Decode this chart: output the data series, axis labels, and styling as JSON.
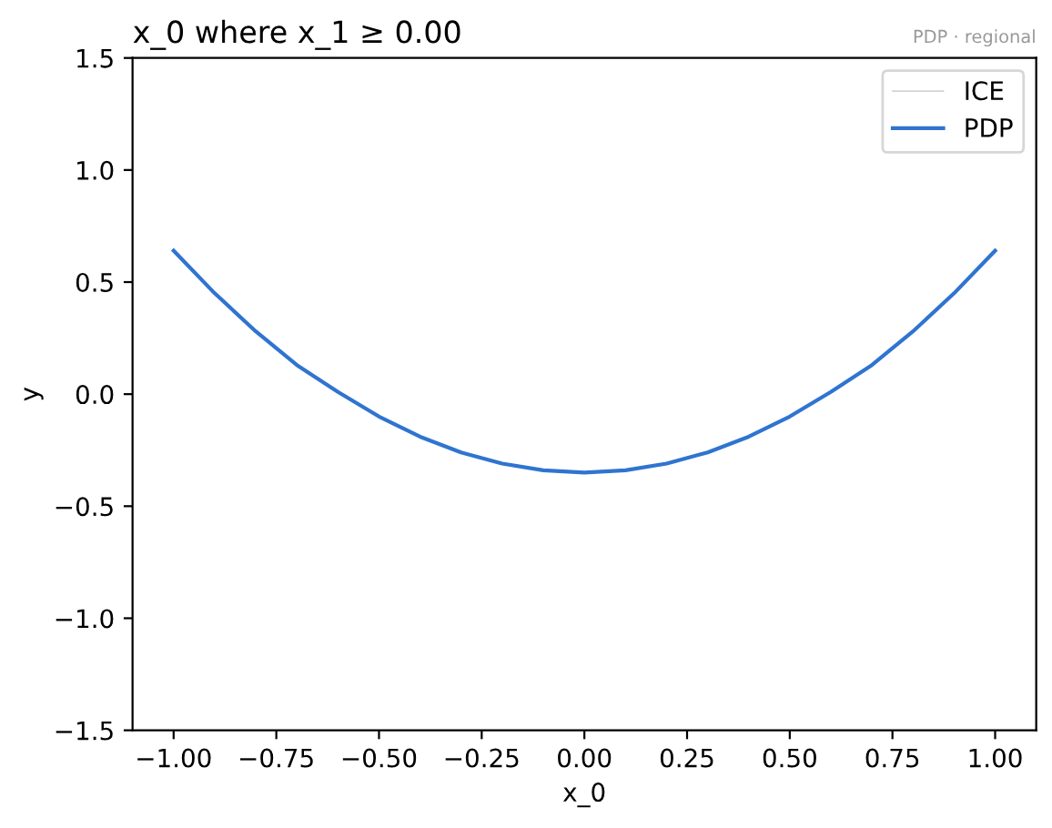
{
  "chart_data": {
    "type": "line",
    "title": "x_0 where x_1 ≥ 0.00",
    "xlabel": "x_0",
    "ylabel": "y",
    "annotations": [
      "PDP · regional"
    ],
    "x": [
      -1.0,
      -0.9,
      -0.8,
      -0.7,
      -0.6,
      -0.5,
      -0.4,
      -0.3,
      -0.2,
      -0.1,
      0.0,
      0.1,
      0.2,
      0.3,
      0.4,
      0.5,
      0.6,
      0.7,
      0.8,
      0.9,
      1.0
    ],
    "series": [
      {
        "name": "ICE",
        "color": "#d3d3d3",
        "values": [
          null,
          null,
          null,
          null,
          null,
          null,
          null,
          null,
          null,
          null,
          null,
          null,
          null,
          null,
          null,
          null,
          null,
          null,
          null,
          null,
          null
        ]
      },
      {
        "name": "PDP",
        "color": "#2f74d0",
        "values": [
          0.64,
          0.45,
          0.28,
          0.13,
          0.01,
          -0.1,
          -0.19,
          -0.26,
          -0.31,
          -0.34,
          -0.35,
          -0.34,
          -0.31,
          -0.26,
          -0.19,
          -0.1,
          0.01,
          0.13,
          0.28,
          0.45,
          0.64
        ]
      }
    ],
    "xlim": [
      -1.1,
      1.1
    ],
    "ylim": [
      -1.5,
      1.5
    ],
    "xticks": [
      {
        "value": -1.0,
        "label": "−1.00"
      },
      {
        "value": -0.75,
        "label": "−0.75"
      },
      {
        "value": -0.5,
        "label": "−0.50"
      },
      {
        "value": -0.25,
        "label": "−0.25"
      },
      {
        "value": 0.0,
        "label": "0.00"
      },
      {
        "value": 0.25,
        "label": "0.25"
      },
      {
        "value": 0.5,
        "label": "0.50"
      },
      {
        "value": 0.75,
        "label": "0.75"
      },
      {
        "value": 1.0,
        "label": "1.00"
      }
    ],
    "yticks": [
      {
        "value": -1.5,
        "label": "−1.5"
      },
      {
        "value": -1.0,
        "label": "−1.0"
      },
      {
        "value": -0.5,
        "label": "−0.5"
      },
      {
        "value": 0.0,
        "label": "0.0"
      },
      {
        "value": 0.5,
        "label": "0.5"
      },
      {
        "value": 1.0,
        "label": "1.0"
      },
      {
        "value": 1.5,
        "label": "1.5"
      }
    ],
    "legend": "top right",
    "grid": false,
    "line_style": "solid",
    "marker": "none"
  }
}
